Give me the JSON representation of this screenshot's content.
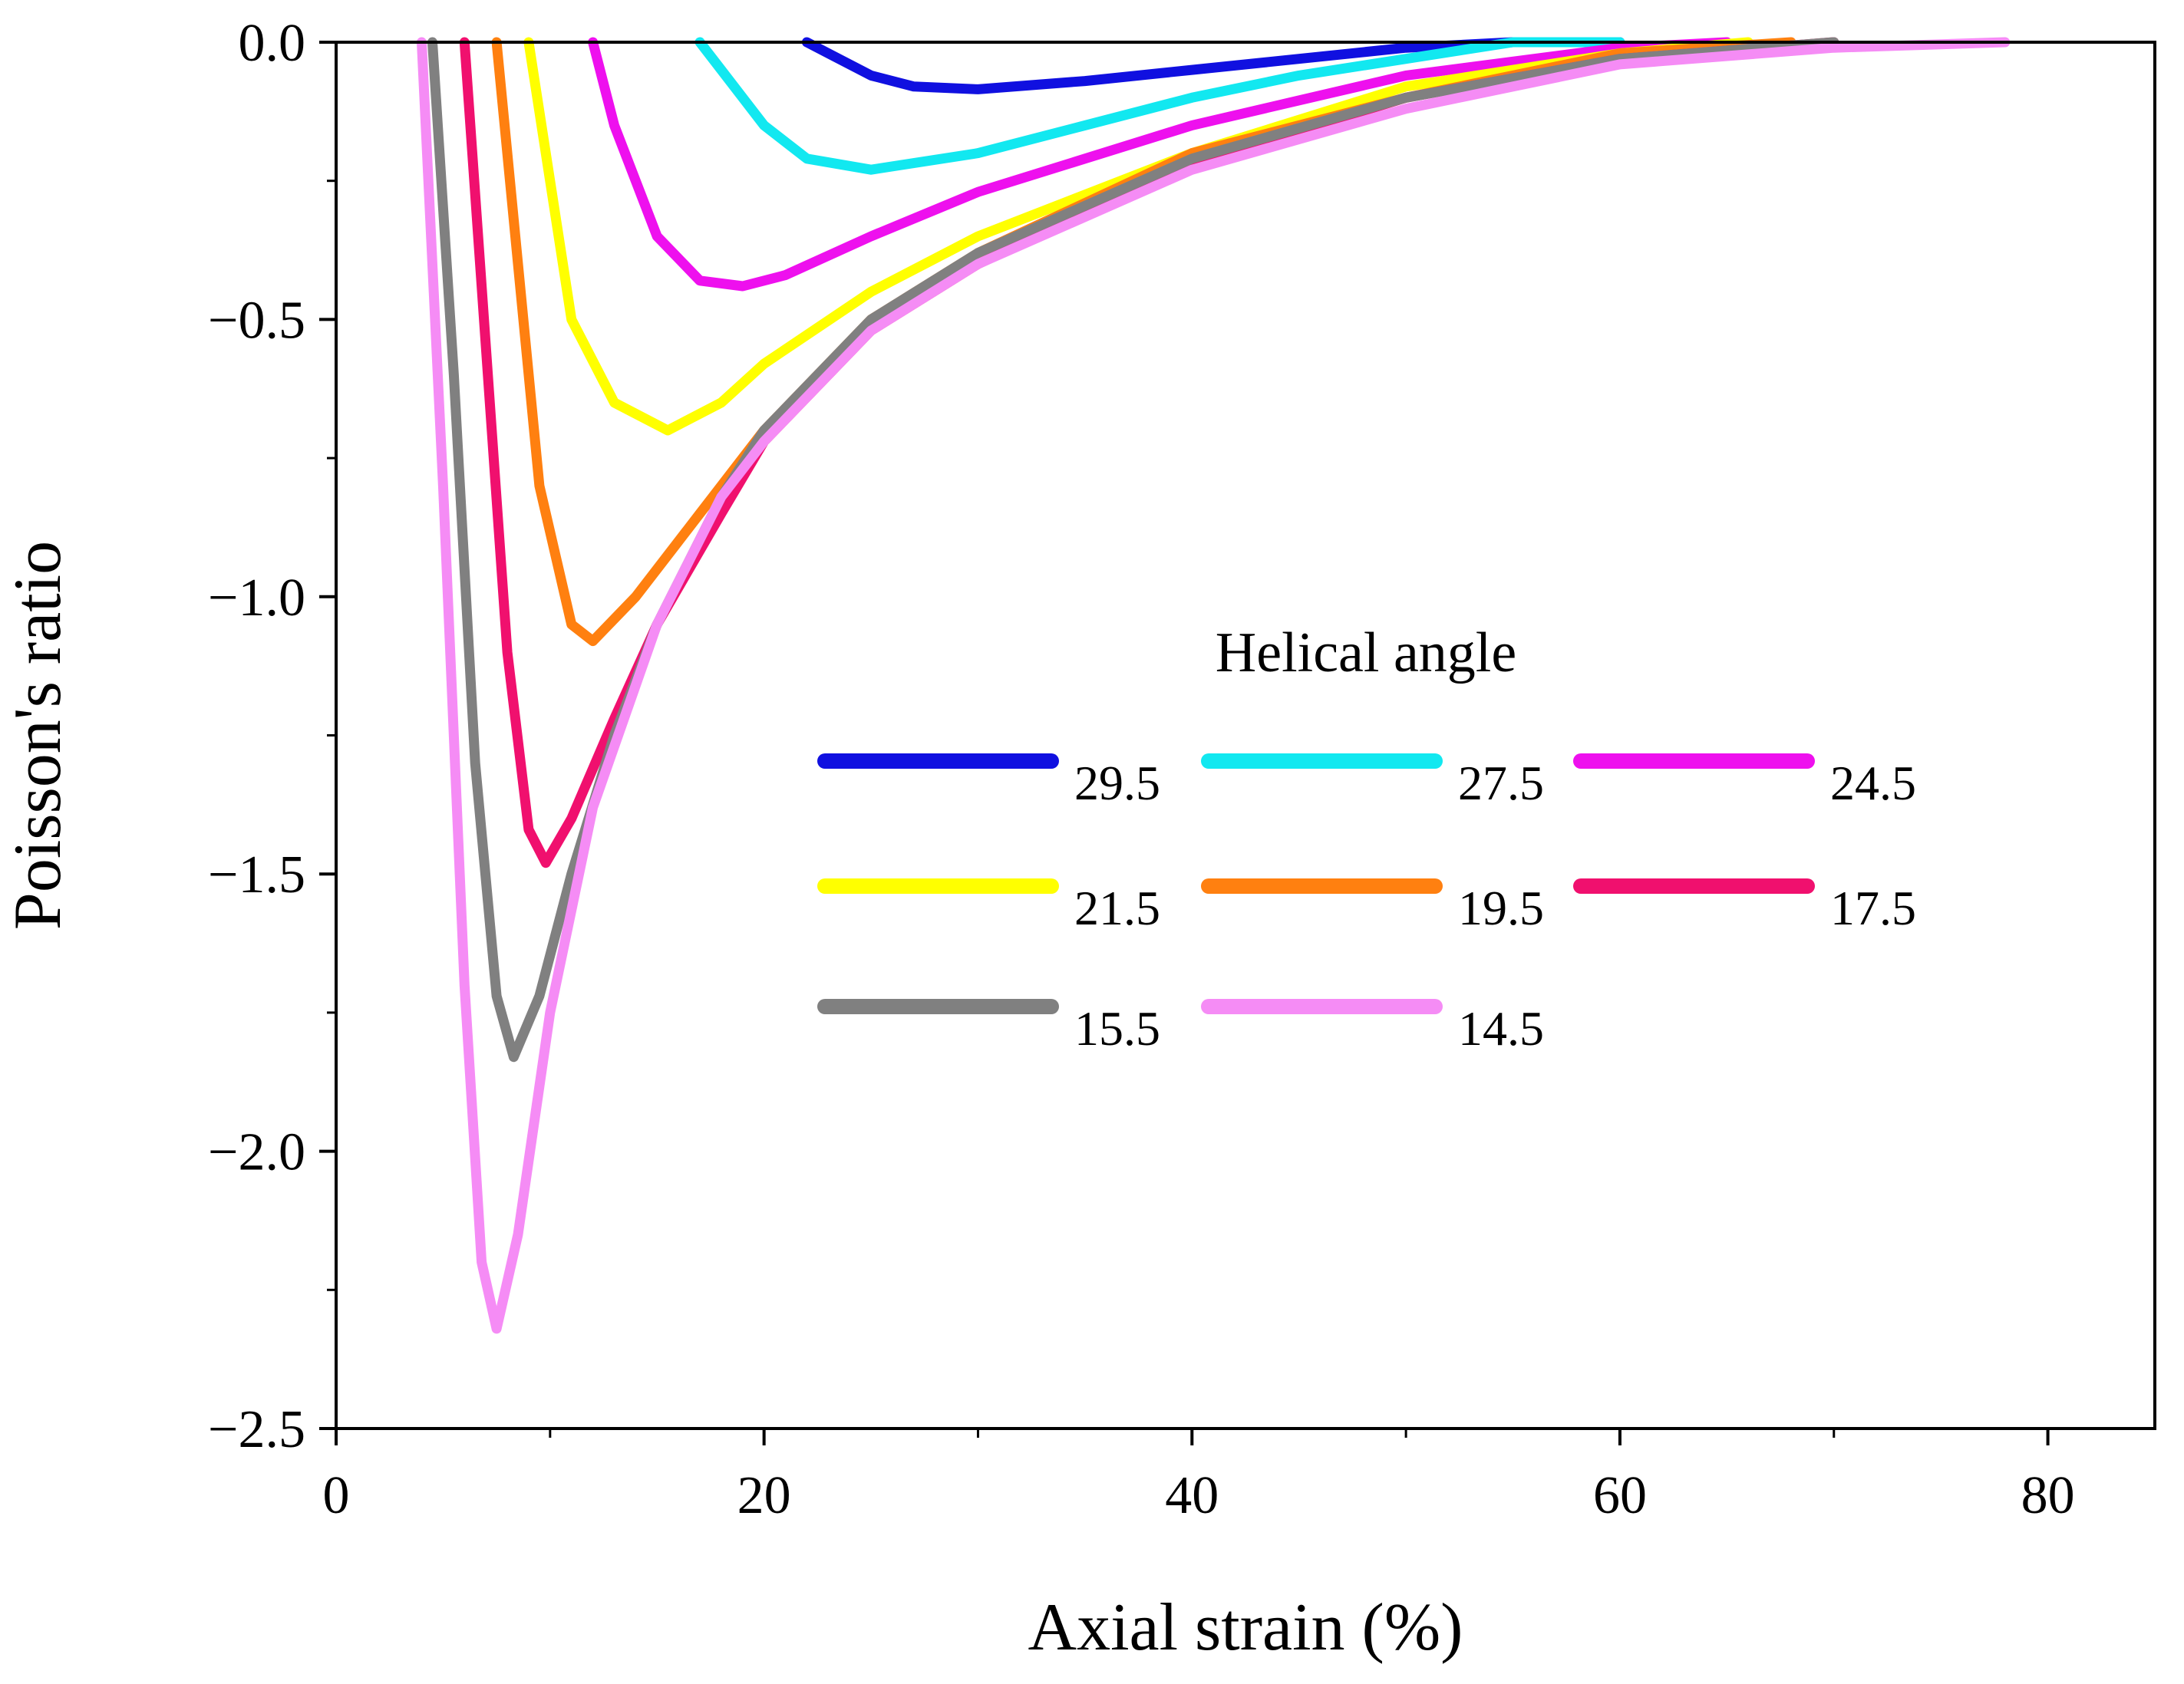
{
  "chart_data": {
    "type": "line",
    "title": "",
    "xlabel": "Axial strain (%)",
    "ylabel": "Poisson's ratio",
    "xlim": [
      0,
      85
    ],
    "ylim": [
      -2.5,
      0.0
    ],
    "xticks": [
      0,
      20,
      40,
      60,
      80
    ],
    "xtick_labels": [
      "0",
      "20",
      "40",
      "60",
      "80"
    ],
    "yticks": [
      0.0,
      -0.5,
      -1.0,
      -1.5,
      -2.0,
      -2.5
    ],
    "ytick_labels": [
      "0.0",
      "−0.5",
      "−1.0",
      "−1.5",
      "−2.0",
      "−2.5"
    ],
    "grid": false,
    "legend": {
      "title": "Helical angle",
      "placement": "center-right",
      "columns": 3
    },
    "series": [
      {
        "name": "29.5",
        "color": "#1010e0",
        "x": [
          22,
          23,
          25,
          27,
          30,
          35,
          40,
          45,
          50,
          55,
          60
        ],
        "y": [
          0.0,
          -0.02,
          -0.06,
          -0.08,
          -0.085,
          -0.07,
          -0.05,
          -0.03,
          -0.01,
          0.0,
          0.0
        ]
      },
      {
        "name": "27.5",
        "color": "#12e8f0",
        "x": [
          17,
          18,
          20,
          22,
          25,
          30,
          35,
          40,
          45,
          50,
          55,
          60
        ],
        "y": [
          0.0,
          -0.05,
          -0.15,
          -0.21,
          -0.23,
          -0.2,
          -0.15,
          -0.1,
          -0.06,
          -0.03,
          0.0,
          0.0
        ]
      },
      {
        "name": "24.5",
        "color": "#ee10ee",
        "x": [
          12,
          13,
          15,
          17,
          19,
          21,
          25,
          30,
          40,
          50,
          60,
          65
        ],
        "y": [
          0.0,
          -0.15,
          -0.35,
          -0.43,
          -0.44,
          -0.42,
          -0.35,
          -0.27,
          -0.15,
          -0.06,
          -0.01,
          0.0
        ]
      },
      {
        "name": "21.5",
        "color": "#ffff00",
        "x": [
          9,
          10,
          11,
          13,
          15.5,
          18,
          20,
          25,
          30,
          40,
          50,
          60,
          66
        ],
        "y": [
          0.0,
          -0.25,
          -0.5,
          -0.65,
          -0.7,
          -0.65,
          -0.58,
          -0.45,
          -0.35,
          -0.2,
          -0.08,
          -0.02,
          0.0
        ]
      },
      {
        "name": "19.5",
        "color": "#ff8010",
        "x": [
          7.5,
          8.5,
          9.5,
          11,
          12,
          14,
          17,
          20,
          25,
          30,
          40,
          50,
          60,
          68
        ],
        "y": [
          0.0,
          -0.4,
          -0.8,
          -1.05,
          -1.08,
          -1.0,
          -0.85,
          -0.7,
          -0.5,
          -0.38,
          -0.2,
          -0.1,
          -0.02,
          0.0
        ]
      },
      {
        "name": "17.5",
        "color": "#f0106e",
        "x": [
          6,
          7,
          8,
          9,
          9.8,
          11,
          13,
          15,
          18,
          20,
          25,
          30,
          40,
          50,
          60,
          70
        ],
        "y": [
          0.0,
          -0.55,
          -1.1,
          -1.42,
          -1.48,
          -1.4,
          -1.22,
          -1.05,
          -0.85,
          -0.72,
          -0.52,
          -0.4,
          -0.22,
          -0.1,
          -0.03,
          0.0
        ]
      },
      {
        "name": "15.5",
        "color": "#808080",
        "x": [
          4.5,
          5.5,
          6.5,
          7.5,
          8.3,
          9.5,
          11,
          13,
          15,
          18,
          20,
          25,
          30,
          40,
          50,
          60,
          70
        ],
        "y": [
          0.0,
          -0.6,
          -1.3,
          -1.72,
          -1.83,
          -1.72,
          -1.5,
          -1.25,
          -1.05,
          -0.82,
          -0.7,
          -0.5,
          -0.38,
          -0.21,
          -0.1,
          -0.03,
          0.0
        ]
      },
      {
        "name": "14.5",
        "color": "#f58cf5",
        "x": [
          4,
          5,
          6,
          6.8,
          7.5,
          8.5,
          10,
          12,
          15,
          18,
          20,
          25,
          30,
          40,
          50,
          60,
          70,
          78
        ],
        "y": [
          0.0,
          -0.8,
          -1.7,
          -2.2,
          -2.32,
          -2.15,
          -1.75,
          -1.38,
          -1.05,
          -0.82,
          -0.72,
          -0.52,
          -0.4,
          -0.23,
          -0.12,
          -0.04,
          -0.01,
          0.0
        ]
      }
    ]
  }
}
